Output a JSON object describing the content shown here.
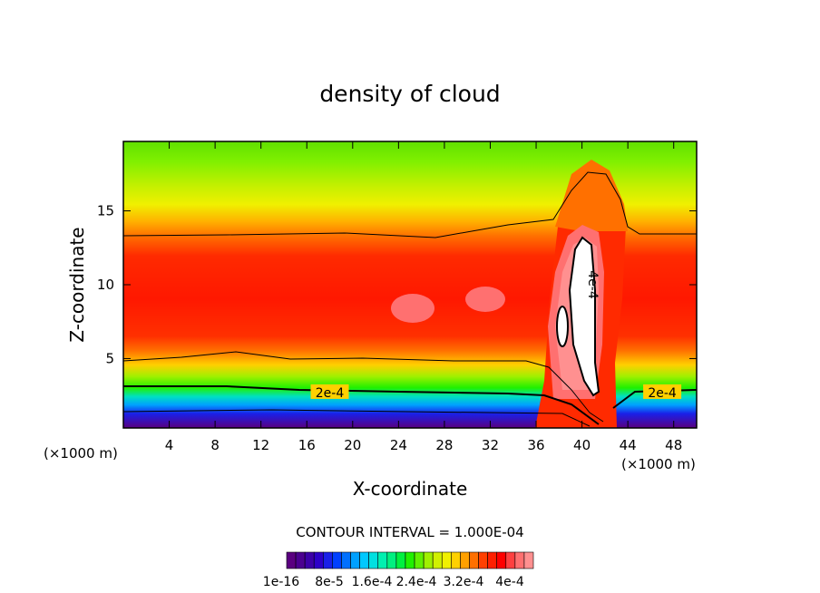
{
  "chart_data": {
    "type": "heatmap",
    "title": "density of cloud",
    "xlabel": "X-coordinate",
    "ylabel": "Z-coordinate",
    "x_unit_left": "(×1000 m)",
    "x_unit_right": "(×1000 m)",
    "xlim": [
      0,
      50
    ],
    "ylim": [
      0.3,
      19.7
    ],
    "x_ticks": [
      4,
      8,
      12,
      16,
      20,
      24,
      28,
      32,
      36,
      40,
      44,
      48
    ],
    "y_ticks": [
      5,
      10,
      15
    ],
    "contour_interval_text": "CONTOUR INTERVAL = 1.000E-04",
    "contour_lines": [
      {
        "level_label": "2e-4",
        "label_positions": [
          [
            18,
            2.7
          ],
          [
            47,
            2.7
          ]
        ]
      },
      {
        "level_label": "4e-4",
        "label_positions": [
          [
            41,
            10
          ]
        ]
      }
    ],
    "colorbar": {
      "colors": [
        "#5a0080",
        "#4b0090",
        "#3c00a8",
        "#2d00c8",
        "#1a20e8",
        "#0040ff",
        "#0070ff",
        "#00a0ff",
        "#00c8ff",
        "#00e0e0",
        "#00f0b0",
        "#00f080",
        "#00f040",
        "#20f000",
        "#60f000",
        "#a0f000",
        "#d0f000",
        "#f0f000",
        "#ffd000",
        "#ffa000",
        "#ff7000",
        "#ff4000",
        "#ff2000",
        "#ff0000",
        "#ff4040",
        "#ff7070",
        "#ff9090"
      ],
      "tick_labels": [
        "1e-16",
        "8e-5",
        "1.6e-4",
        "2.4e-4",
        "3.2e-4",
        "4e-4"
      ]
    }
  }
}
